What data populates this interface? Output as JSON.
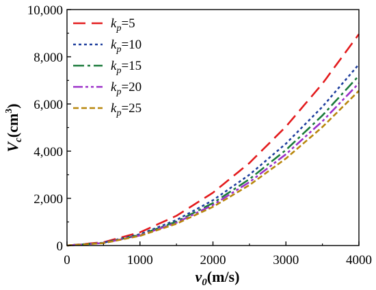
{
  "chart_data": {
    "type": "line",
    "xlabel": {
      "main": "v",
      "sub": "0",
      "unit": "(m/s)"
    },
    "ylabel": {
      "main": "V",
      "sub": "c",
      "unit": "(cm",
      "sup": "3",
      "close": ")"
    },
    "xlim": [
      0,
      4000
    ],
    "ylim": [
      0,
      10000
    ],
    "xticks": [
      "0",
      "1000",
      "2000",
      "3000",
      "4000"
    ],
    "yticks": [
      "0",
      "2,000",
      "4,000",
      "6,000",
      "8,000",
      "10,000"
    ],
    "grid": false,
    "legend_position": "top-left",
    "x": [
      0,
      500,
      1000,
      1500,
      2000,
      2500,
      3000,
      3500,
      4000
    ],
    "series": [
      {
        "name_prefix": "k",
        "name_sub": "p",
        "name_suffix": "=5",
        "color": "#e31a1c",
        "dash": "18,9",
        "values": [
          0,
          140,
          560,
          1260,
          2240,
          3500,
          5040,
          6860,
          8960
        ]
      },
      {
        "name_prefix": "k",
        "name_sub": "p",
        "name_suffix": "=10",
        "color": "#1f3f9e",
        "dash": "4,4",
        "values": [
          0,
          120,
          480,
          1080,
          1920,
          3000,
          4320,
          5880,
          7680
        ]
      },
      {
        "name_prefix": "k",
        "name_sub": "p",
        "name_suffix": "=15",
        "color": "#1a7a3a",
        "dash": "16,5,4,5",
        "values": [
          0,
          113,
          450,
          1013,
          1800,
          2813,
          4050,
          5513,
          7200
        ]
      },
      {
        "name_prefix": "k",
        "name_sub": "p",
        "name_suffix": "=20",
        "color": "#9b30c8",
        "dash": "14,4,4,4,4,4",
        "values": [
          0,
          107,
          430,
          968,
          1720,
          2688,
          3870,
          5268,
          6880
        ]
      },
      {
        "name_prefix": "k",
        "name_sub": "p",
        "name_suffix": "=25",
        "color": "#b8860b",
        "dash": "8,4",
        "values": [
          0,
          102,
          410,
          923,
          1640,
          2563,
          3690,
          5023,
          6560
        ]
      }
    ]
  }
}
